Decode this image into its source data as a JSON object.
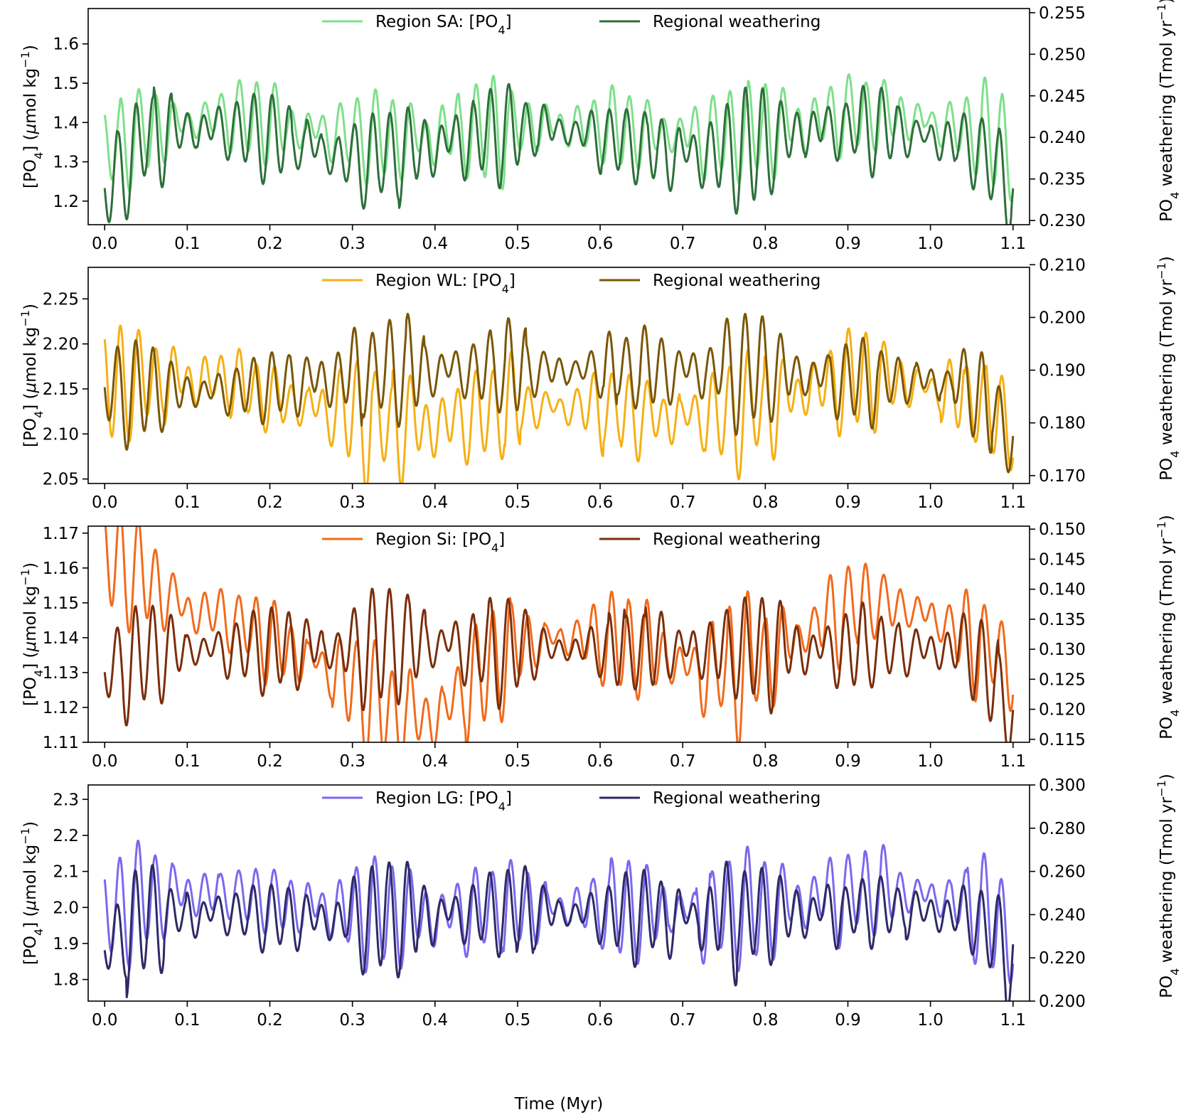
{
  "figure": {
    "xlabel": "Time (Myr)",
    "x_ticks": [
      "0.0",
      "0.1",
      "0.2",
      "0.3",
      "0.4",
      "0.5",
      "0.6",
      "0.7",
      "0.8",
      "0.9",
      "1.0",
      "1.1"
    ]
  },
  "colors": {
    "SA_po4": "#7ee08a",
    "SA_weath": "#2e6f3a",
    "WL_po4": "#f5b014",
    "WL_weath": "#7a5606",
    "Si_po4": "#f26a1b",
    "Si_weath": "#7a2e0b",
    "LG_po4": "#7b68ee",
    "LG_weath": "#2e2a66"
  },
  "chart_data": [
    {
      "type": "line",
      "panel": "SA",
      "xlim": [
        -0.02,
        1.12
      ],
      "left_ylabel_parts": [
        "[PO",
        "4",
        "] (",
        "μ",
        "mol kg",
        "−1",
        ")"
      ],
      "right_ylabel_parts": [
        "PO",
        "4",
        " weathering (Tmol yr",
        "−1",
        ")"
      ],
      "left_ylim": [
        1.14,
        1.69
      ],
      "right_ylim": [
        0.2295,
        0.2555
      ],
      "left_ticks": [
        "1.2",
        "1.3",
        "1.4",
        "1.5",
        "1.6"
      ],
      "right_ticks": [
        "0.230",
        "0.235",
        "0.240",
        "0.245",
        "0.250",
        "0.255"
      ],
      "series": [
        {
          "name_parts": [
            "Region SA: [PO",
            "4",
            "]"
          ],
          "axis": "left",
          "color_key": "SA_po4",
          "x": [
            0.0,
            0.05,
            0.1,
            0.15,
            0.2,
            0.25,
            0.3,
            0.35,
            0.4,
            0.45,
            0.5,
            0.55,
            0.6,
            0.65,
            0.7,
            0.75,
            0.8,
            0.85,
            0.9,
            0.95,
            1.0,
            1.05,
            1.1
          ],
          "y": [
            1.33,
            1.38,
            1.4,
            1.42,
            1.4,
            1.38,
            1.37,
            1.36,
            1.37,
            1.38,
            1.39,
            1.39,
            1.39,
            1.38,
            1.37,
            1.37,
            1.38,
            1.4,
            1.42,
            1.42,
            1.4,
            1.38,
            1.34
          ]
        },
        {
          "name": "Regional weathering",
          "axis": "right",
          "color_key": "SA_weath",
          "x": [
            0.0,
            0.05,
            0.1,
            0.15,
            0.2,
            0.25,
            0.3,
            0.35,
            0.4,
            0.45,
            0.5,
            0.55,
            0.6,
            0.65,
            0.7,
            0.75,
            0.8,
            0.85,
            0.9,
            0.95,
            1.0,
            1.05,
            1.1
          ],
          "y": [
            0.233,
            0.24,
            0.241,
            0.241,
            0.24,
            0.239,
            0.237,
            0.238,
            0.239,
            0.24,
            0.241,
            0.241,
            0.24,
            0.239,
            0.238,
            0.238,
            0.239,
            0.241,
            0.241,
            0.241,
            0.24,
            0.239,
            0.234
          ]
        }
      ]
    },
    {
      "type": "line",
      "panel": "WL",
      "xlim": [
        -0.02,
        1.12
      ],
      "left_ylabel_parts": [
        "[PO",
        "4",
        "] (",
        "μ",
        "mol kg",
        "−1",
        ")"
      ],
      "right_ylabel_parts": [
        "PO",
        "4",
        " weathering (Tmol yr",
        "−1",
        ")"
      ],
      "left_ylim": [
        2.045,
        2.285
      ],
      "right_ylim": [
        0.1685,
        0.2095
      ],
      "left_ticks": [
        "2.05",
        "2.10",
        "2.15",
        "2.20",
        "2.25"
      ],
      "right_ticks": [
        "0.170",
        "0.180",
        "0.190",
        "0.200",
        "0.210"
      ],
      "series": [
        {
          "name_parts": [
            "Region WL: [PO",
            "4",
            "]"
          ],
          "axis": "left",
          "color_key": "WL_po4",
          "x": [
            0.0,
            0.05,
            0.1,
            0.15,
            0.2,
            0.25,
            0.3,
            0.35,
            0.4,
            0.45,
            0.5,
            0.55,
            0.6,
            0.65,
            0.7,
            0.75,
            0.8,
            0.85,
            0.9,
            0.95,
            1.0,
            1.05,
            1.1
          ],
          "y": [
            2.15,
            2.16,
            2.16,
            2.16,
            2.14,
            2.13,
            2.12,
            2.11,
            2.11,
            2.12,
            2.13,
            2.13,
            2.13,
            2.12,
            2.12,
            2.12,
            2.13,
            2.15,
            2.16,
            2.16,
            2.15,
            2.14,
            2.11
          ]
        },
        {
          "name": "Regional weathering",
          "axis": "right",
          "color_key": "WL_weath",
          "x": [
            0.0,
            0.05,
            0.1,
            0.15,
            0.2,
            0.25,
            0.3,
            0.35,
            0.4,
            0.45,
            0.5,
            0.55,
            0.6,
            0.65,
            0.7,
            0.75,
            0.8,
            0.85,
            0.9,
            0.95,
            1.0,
            1.05,
            1.1
          ],
          "y": [
            0.186,
            0.186,
            0.186,
            0.186,
            0.187,
            0.188,
            0.189,
            0.19,
            0.19,
            0.19,
            0.19,
            0.19,
            0.19,
            0.19,
            0.19,
            0.19,
            0.19,
            0.189,
            0.188,
            0.188,
            0.188,
            0.187,
            0.177
          ]
        }
      ]
    },
    {
      "type": "line",
      "panel": "Si",
      "xlim": [
        -0.02,
        1.12
      ],
      "left_ylabel_parts": [
        "[PO",
        "4",
        "] (",
        "μ",
        "mol kg",
        "−1",
        ")"
      ],
      "right_ylabel_parts": [
        "PO",
        "4",
        " weathering (Tmol yr",
        "−1",
        ")"
      ],
      "left_ylim": [
        1.11,
        1.172
      ],
      "right_ylim": [
        0.1145,
        0.1505
      ],
      "left_ticks": [
        "1.11",
        "1.12",
        "1.13",
        "1.14",
        "1.15",
        "1.16",
        "1.17"
      ],
      "right_ticks": [
        "0.115",
        "0.120",
        "0.125",
        "0.130",
        "0.135",
        "0.140",
        "0.145",
        "0.150"
      ],
      "series": [
        {
          "name_parts": [
            "Region Si: [PO",
            "4",
            "]"
          ],
          "axis": "left",
          "color_key": "Si_po4",
          "x": [
            0.0,
            0.05,
            0.1,
            0.15,
            0.2,
            0.25,
            0.3,
            0.35,
            0.4,
            0.45,
            0.5,
            0.55,
            0.6,
            0.65,
            0.7,
            0.75,
            0.8,
            0.85,
            0.9,
            0.95,
            1.0,
            1.05,
            1.1
          ],
          "y": [
            1.163,
            1.157,
            1.148,
            1.146,
            1.139,
            1.134,
            1.126,
            1.118,
            1.117,
            1.128,
            1.138,
            1.14,
            1.14,
            1.137,
            1.132,
            1.13,
            1.134,
            1.142,
            1.149,
            1.15,
            1.146,
            1.14,
            1.133
          ]
        },
        {
          "name": "Regional weathering",
          "axis": "right",
          "color_key": "Si_weath",
          "x": [
            0.0,
            0.05,
            0.1,
            0.15,
            0.2,
            0.25,
            0.3,
            0.35,
            0.4,
            0.45,
            0.5,
            0.55,
            0.6,
            0.65,
            0.7,
            0.75,
            0.8,
            0.85,
            0.9,
            0.95,
            1.0,
            1.05,
            1.1
          ],
          "y": [
            0.126,
            0.129,
            0.13,
            0.13,
            0.13,
            0.13,
            0.13,
            0.131,
            0.131,
            0.13,
            0.13,
            0.13,
            0.13,
            0.13,
            0.13,
            0.13,
            0.13,
            0.13,
            0.13,
            0.13,
            0.13,
            0.13,
            0.119
          ]
        }
      ]
    },
    {
      "type": "line",
      "panel": "LG",
      "xlim": [
        -0.02,
        1.12
      ],
      "left_ylabel_parts": [
        "[PO",
        "4",
        "] (",
        "μ",
        "mol kg",
        "−1",
        ")"
      ],
      "right_ylabel_parts": [
        "PO",
        "4",
        " weathering (Tmol yr",
        "−1",
        ")"
      ],
      "left_ylim": [
        1.74,
        2.34
      ],
      "right_ylim": [
        0.2,
        0.3
      ],
      "left_ticks": [
        "1.8",
        "1.9",
        "2.0",
        "2.1",
        "2.2",
        "2.3"
      ],
      "right_ticks": [
        "0.200",
        "0.220",
        "0.240",
        "0.260",
        "0.280",
        "0.300"
      ],
      "series": [
        {
          "name_parts": [
            "Region LG: [PO",
            "4",
            "]"
          ],
          "axis": "left",
          "color_key": "LG_po4",
          "x": [
            0.0,
            0.05,
            0.1,
            0.15,
            0.2,
            0.25,
            0.3,
            0.35,
            0.4,
            0.45,
            0.5,
            0.55,
            0.6,
            0.65,
            0.7,
            0.75,
            0.8,
            0.85,
            0.9,
            0.95,
            1.0,
            1.05,
            1.1
          ],
          "y": [
            1.98,
            2.03,
            2.04,
            2.04,
            2.02,
            2.0,
            1.99,
            1.98,
            1.98,
            1.99,
            2.0,
            2.0,
            2.0,
            1.99,
            1.99,
            1.99,
            2.0,
            2.02,
            2.04,
            2.05,
            2.03,
            2.01,
            1.93
          ]
        },
        {
          "name": "Regional weathering",
          "axis": "right",
          "color_key": "LG_weath",
          "x": [
            0.0,
            0.05,
            0.1,
            0.15,
            0.2,
            0.25,
            0.3,
            0.35,
            0.4,
            0.45,
            0.5,
            0.55,
            0.6,
            0.65,
            0.7,
            0.75,
            0.8,
            0.85,
            0.9,
            0.95,
            1.0,
            1.05,
            1.1
          ],
          "y": [
            0.224,
            0.238,
            0.24,
            0.241,
            0.239,
            0.238,
            0.238,
            0.239,
            0.24,
            0.241,
            0.242,
            0.241,
            0.24,
            0.24,
            0.239,
            0.239,
            0.24,
            0.241,
            0.242,
            0.243,
            0.241,
            0.239,
            0.221
          ]
        }
      ]
    }
  ]
}
